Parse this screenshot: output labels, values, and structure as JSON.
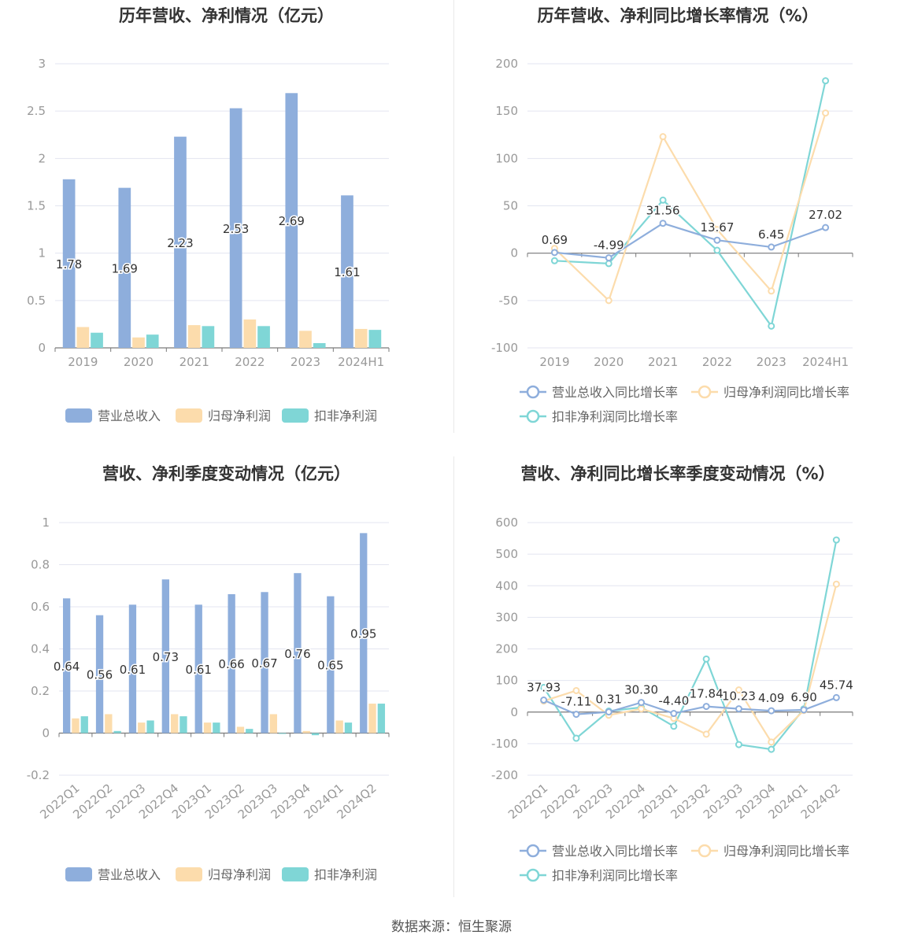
{
  "colors": {
    "revenue": "#8eaedc",
    "parent_profit": "#fcdcac",
    "deducted_profit": "#7fd6d6",
    "axis_text": "#999999",
    "grid": "#e3e5f0",
    "label_text": "#333333"
  },
  "source": "数据来源：恒生聚源",
  "chart_data": [
    {
      "id": "annual_amount",
      "type": "bar",
      "title": "历年营收、净利情况（亿元）",
      "categories": [
        "2019",
        "2020",
        "2021",
        "2022",
        "2023",
        "2024H1"
      ],
      "series": [
        {
          "name": "营业总收入",
          "values": [
            1.78,
            1.69,
            2.23,
            2.53,
            2.69,
            1.61
          ],
          "labels": [
            "1.78",
            "1.69",
            "2.23",
            "2.53",
            "2.69",
            "1.61"
          ]
        },
        {
          "name": "归母净利润",
          "values": [
            0.22,
            0.11,
            0.24,
            0.3,
            0.18,
            0.2
          ]
        },
        {
          "name": "扣非净利润",
          "values": [
            0.16,
            0.14,
            0.23,
            0.23,
            0.05,
            0.19
          ]
        }
      ],
      "ylim": [
        0,
        3
      ],
      "yticks": [
        "0",
        "0.5",
        "1",
        "1.5",
        "2",
        "2.5",
        "3"
      ],
      "legend": "bottom",
      "grid": true
    },
    {
      "id": "annual_growth",
      "type": "line",
      "title": "历年营收、净利同比增长率情况（%）",
      "categories": [
        "2019",
        "2020",
        "2021",
        "2022",
        "2023",
        "2024H1"
      ],
      "series": [
        {
          "name": "营业总收入同比增长率",
          "values": [
            0.69,
            -4.99,
            31.56,
            13.67,
            6.45,
            27.02
          ],
          "labels": [
            "0.69",
            "-4.99",
            "31.56",
            "13.67",
            "6.45",
            "27.02"
          ]
        },
        {
          "name": "归母净利润同比增长率",
          "values": [
            5,
            -50,
            123,
            25,
            -40,
            148
          ]
        },
        {
          "name": "扣非净利润同比增长率",
          "values": [
            -8,
            -11,
            56,
            3,
            -77,
            182
          ]
        }
      ],
      "ylim": [
        -100,
        200
      ],
      "yticks": [
        "-100",
        "-50",
        "0",
        "50",
        "100",
        "150",
        "200"
      ],
      "legend": "bottom",
      "grid": true
    },
    {
      "id": "quarterly_amount",
      "type": "bar",
      "title": "营收、净利季度变动情况（亿元）",
      "categories": [
        "2022Q1",
        "2022Q2",
        "2022Q3",
        "2022Q4",
        "2023Q1",
        "2023Q2",
        "2023Q3",
        "2023Q4",
        "2024Q1",
        "2024Q2"
      ],
      "series": [
        {
          "name": "营业总收入",
          "values": [
            0.64,
            0.56,
            0.61,
            0.73,
            0.61,
            0.66,
            0.67,
            0.76,
            0.65,
            0.95
          ],
          "labels": [
            "0.64",
            "0.56",
            "0.61",
            "0.73",
            "0.61",
            "0.66",
            "0.67",
            "0.76",
            "0.65",
            "0.95"
          ]
        },
        {
          "name": "归母净利润",
          "values": [
            0.07,
            0.09,
            0.05,
            0.09,
            0.05,
            0.03,
            0.09,
            0.01,
            0.06,
            0.14
          ]
        },
        {
          "name": "扣非净利润",
          "values": [
            0.08,
            0.01,
            0.06,
            0.08,
            0.05,
            0.02,
            0.0,
            -0.01,
            0.05,
            0.14
          ]
        }
      ],
      "ylim": [
        -0.2,
        1
      ],
      "yticks": [
        "-0.2",
        "0",
        "0.2",
        "0.4",
        "0.6",
        "0.8",
        "1"
      ],
      "legend": "bottom",
      "grid": true
    },
    {
      "id": "quarterly_growth",
      "type": "line",
      "title": "营收、净利同比增长率季度变动情况（%）",
      "categories": [
        "2022Q1",
        "2022Q2",
        "2022Q3",
        "2022Q4",
        "2023Q1",
        "2023Q2",
        "2023Q3",
        "2023Q4",
        "2024Q1",
        "2024Q2"
      ],
      "series": [
        {
          "name": "营业总收入同比增长率",
          "values": [
            37.93,
            -7.11,
            0.31,
            30.3,
            -4.4,
            17.84,
            10.23,
            4.09,
            6.9,
            45.74
          ],
          "labels": [
            "37.93",
            "-7.11",
            "0.31",
            "30.30",
            "-4.40",
            "17.84",
            "10.23",
            "4.09",
            "6.90",
            "45.74"
          ]
        },
        {
          "name": "归母净利润同比增长率",
          "values": [
            35,
            68,
            -10,
            10,
            -20,
            -70,
            70,
            -95,
            5,
            405
          ]
        },
        {
          "name": "扣非净利润同比增长率",
          "values": [
            78,
            -83,
            3,
            15,
            -45,
            168,
            -103,
            -118,
            10,
            545
          ]
        }
      ],
      "ylim": [
        -200,
        600
      ],
      "yticks": [
        "-200",
        "-100",
        "0",
        "100",
        "200",
        "300",
        "400",
        "500",
        "600"
      ],
      "legend": "bottom",
      "grid": true
    }
  ]
}
